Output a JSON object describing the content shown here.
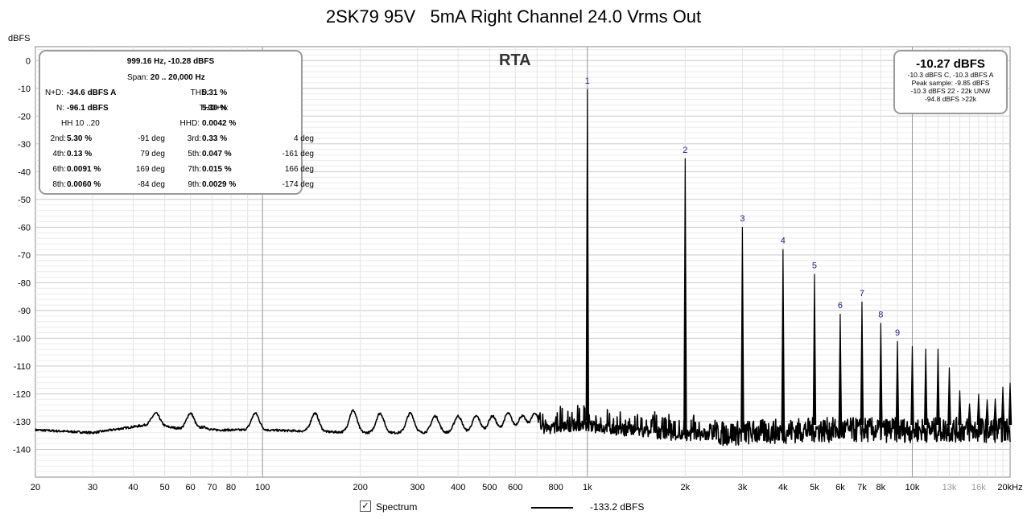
{
  "chart_data": {
    "type": "line",
    "title": "2SK79 95V   5mA Right Channel 24.0 Vrms Out",
    "ylabel": "dBFS",
    "xlabel": "",
    "x_scale": "log",
    "xlim": [
      20,
      20000
    ],
    "ylim": [
      -150,
      5
    ],
    "grid": true,
    "legend_position": "bottom-center",
    "x_ticks": [
      {
        "v": 20,
        "label": "20",
        "grey": false
      },
      {
        "v": 30,
        "label": "30",
        "grey": false
      },
      {
        "v": 40,
        "label": "40",
        "grey": false
      },
      {
        "v": 50,
        "label": "50",
        "grey": false
      },
      {
        "v": 60,
        "label": "60",
        "grey": false
      },
      {
        "v": 70,
        "label": "70",
        "grey": false
      },
      {
        "v": 80,
        "label": "80",
        "grey": false
      },
      {
        "v": 100,
        "label": "100",
        "grey": false
      },
      {
        "v": 200,
        "label": "200",
        "grey": false
      },
      {
        "v": 300,
        "label": "300",
        "grey": false
      },
      {
        "v": 400,
        "label": "400",
        "grey": false
      },
      {
        "v": 500,
        "label": "500",
        "grey": false
      },
      {
        "v": 600,
        "label": "600",
        "grey": false
      },
      {
        "v": 800,
        "label": "800",
        "grey": false
      },
      {
        "v": 1000,
        "label": "1k",
        "grey": false
      },
      {
        "v": 2000,
        "label": "2k",
        "grey": false
      },
      {
        "v": 3000,
        "label": "3k",
        "grey": false
      },
      {
        "v": 4000,
        "label": "4k",
        "grey": false
      },
      {
        "v": 5000,
        "label": "5k",
        "grey": false
      },
      {
        "v": 6000,
        "label": "6k",
        "grey": false
      },
      {
        "v": 7000,
        "label": "7k",
        "grey": false
      },
      {
        "v": 8000,
        "label": "8k",
        "grey": false
      },
      {
        "v": 10000,
        "label": "10k",
        "grey": false
      },
      {
        "v": 13000,
        "label": "13k",
        "grey": true
      },
      {
        "v": 16000,
        "label": "16k",
        "grey": true
      },
      {
        "v": 20000,
        "label": "20kHz",
        "grey": false
      }
    ],
    "y_ticks": [
      0,
      -10,
      -20,
      -30,
      -40,
      -50,
      -60,
      -70,
      -80,
      -90,
      -100,
      -110,
      -120,
      -130,
      -140
    ],
    "series": [
      {
        "name": "Spectrum",
        "color": "#000000",
        "noise_floor": [
          [
            20,
            -133
          ],
          [
            30,
            -134
          ],
          [
            45,
            -131
          ],
          [
            60,
            -133
          ],
          [
            100,
            -133
          ],
          [
            200,
            -134
          ],
          [
            400,
            -134
          ],
          [
            700,
            -133
          ],
          [
            950,
            -131
          ],
          [
            1050,
            -132
          ],
          [
            2000,
            -135
          ],
          [
            3000,
            -134
          ],
          [
            5000,
            -133
          ],
          [
            10000,
            -133
          ],
          [
            20000,
            -133
          ]
        ],
        "noise_bumps": [
          [
            40,
            -133
          ],
          [
            47,
            -127
          ],
          [
            60,
            -127
          ],
          [
            66,
            -132
          ],
          [
            95,
            -127
          ],
          [
            145,
            -127
          ],
          [
            190,
            -126
          ],
          [
            230,
            -127
          ],
          [
            285,
            -127
          ],
          [
            340,
            -128
          ],
          [
            400,
            -128
          ],
          [
            455,
            -128
          ],
          [
            510,
            -128
          ],
          [
            570,
            -127
          ],
          [
            630,
            -128
          ],
          [
            690,
            -127
          ]
        ],
        "harmonics": [
          {
            "n": 1,
            "f": 1000,
            "db": -10.3
          },
          {
            "n": 2,
            "f": 2000,
            "db": -35.2
          },
          {
            "n": 3,
            "f": 3000,
            "db": -59.9
          },
          {
            "n": 4,
            "f": 4000,
            "db": -67.9
          },
          {
            "n": 5,
            "f": 5000,
            "db": -76.8
          },
          {
            "n": 6,
            "f": 6000,
            "db": -91.2
          },
          {
            "n": 7,
            "f": 7000,
            "db": -86.8
          },
          {
            "n": 8,
            "f": 8000,
            "db": -94.5
          },
          {
            "n": 9,
            "f": 9000,
            "db": -101.0
          }
        ],
        "spurs": [
          [
            10000,
            -102.8
          ],
          [
            11000,
            -103.8
          ],
          [
            12000,
            -103.8
          ],
          [
            13000,
            -110.5
          ],
          [
            14000,
            -118.8
          ],
          [
            15000,
            -123.5
          ],
          [
            16000,
            -120.0
          ],
          [
            17000,
            -122.0
          ],
          [
            18000,
            -121.7
          ],
          [
            19000,
            -117.5
          ],
          [
            20000,
            -116.0
          ]
        ]
      }
    ]
  },
  "annotation": "RTA",
  "stats": {
    "header": "999.16 Hz, -10.28 dBFS",
    "span_label": "Span:",
    "span_value": "20 .. 20,000 Hz",
    "nd_label": "N+D:",
    "nd_value": "-34.6 dBFS A",
    "n_label": "N:",
    "n_value": "-96.1 dBFS",
    "thd_label": "THD:",
    "thd_value": "5.31 %",
    "thdn_label": "THD+N:",
    "thdn_value": "5.30 %",
    "hh_label": "HH 10 ..20",
    "hhd_label": "HHD:",
    "hhd_value": "0.0042 %",
    "harmonics": [
      {
        "label": "2nd:",
        "value": "5.30 %",
        "phase": "-91 deg"
      },
      {
        "label": "3rd:",
        "value": "0.33 %",
        "phase": "4 deg"
      },
      {
        "label": "4th:",
        "value": "0.13 %",
        "phase": "79 deg"
      },
      {
        "label": "5th:",
        "value": "0.047 %",
        "phase": "-161 deg"
      },
      {
        "label": "6th:",
        "value": "0.0091 %",
        "phase": "169 deg"
      },
      {
        "label": "7th:",
        "value": "0.015 %",
        "phase": "166 deg"
      },
      {
        "label": "8th:",
        "value": "0.0060 %",
        "phase": "-84 deg"
      },
      {
        "label": "9th:",
        "value": "0.0029 %",
        "phase": "-174 deg"
      }
    ]
  },
  "peak": {
    "value": "-10.27 dBFS",
    "lines": [
      "-10.3 dBFS C, -10.3 dBFS A",
      "Peak sample: -9.85 dBFS",
      "-10.3 dBFS 22 - 22k UNW",
      "-94.8 dBFS >22k"
    ]
  },
  "legend": {
    "checkbox_checked": true,
    "check_mark": "✓",
    "series_label": "Spectrum",
    "value": "-133.2 dBFS"
  }
}
